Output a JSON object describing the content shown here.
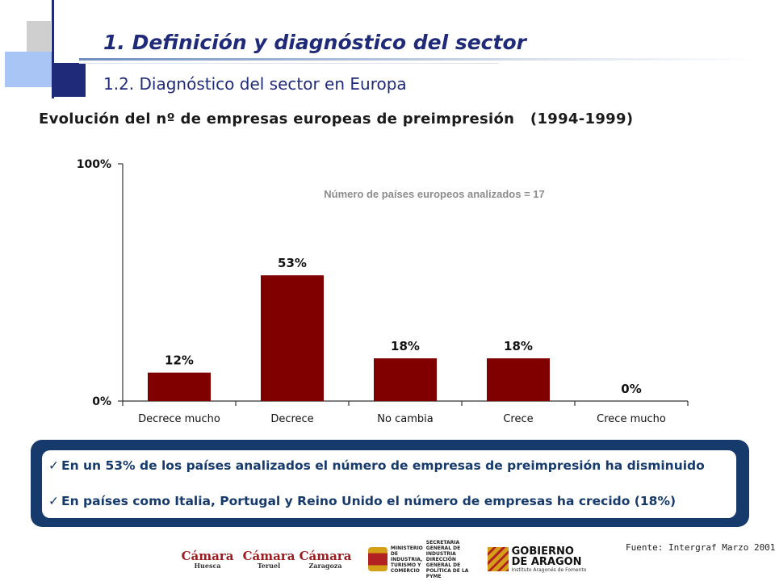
{
  "header": {
    "section_title": "1.  Definición y diagnóstico del sector",
    "subsection_title": "1.2. Diagnóstico del sector en Europa"
  },
  "chart_title": "Evolución del nº de empresas europeas de preimpresión   (1994-1999)",
  "chart_data": {
    "type": "bar",
    "title": "Evolución del nº de empresas europeas de preimpresión   (1994-1999)",
    "annotation": "Número de países europeos analizados = 17",
    "categories": [
      "Decrece mucho",
      "Decrece",
      "No cambia",
      "Crece",
      "Crece mucho"
    ],
    "values": [
      12,
      53,
      18,
      18,
      0
    ],
    "data_labels": [
      "12%",
      "53%",
      "18%",
      "18%",
      "0%"
    ],
    "y_ticks": [
      {
        "value": 0,
        "label": "0%"
      },
      {
        "value": 100,
        "label": "100%"
      }
    ],
    "ylim": [
      0,
      100
    ],
    "grid": false,
    "legend": "none",
    "bar_color": "#800000"
  },
  "callout": {
    "check_glyph": "✓",
    "bullets": [
      "En un 53% de los países analizados el número de empresas de preimpresión ha disminuido",
      "En países como Italia, Portugal y Reino Unido el número de empresas ha crecido (18%)"
    ]
  },
  "source": "Fuente: Intergraf Marzo 2001",
  "logos": {
    "camara_name": "Cámara",
    "camara_cities": [
      "Huesca",
      "Teruel",
      "Zaragoza"
    ],
    "ministerio": [
      "MINISTERIO",
      "DE INDUSTRIA,",
      "TURISMO Y",
      "COMERCIO"
    ],
    "secretaria": [
      "SECRETARIA GENERAL DE",
      "INDUSTRIA",
      "DIRECCIÓN GENERAL DE",
      "POLÍTICA DE LA PYME"
    ],
    "aragon": [
      "GOBIERNO",
      "DE ARAGON"
    ],
    "aragon_sub": "Instituto Aragonés de Fomento"
  }
}
